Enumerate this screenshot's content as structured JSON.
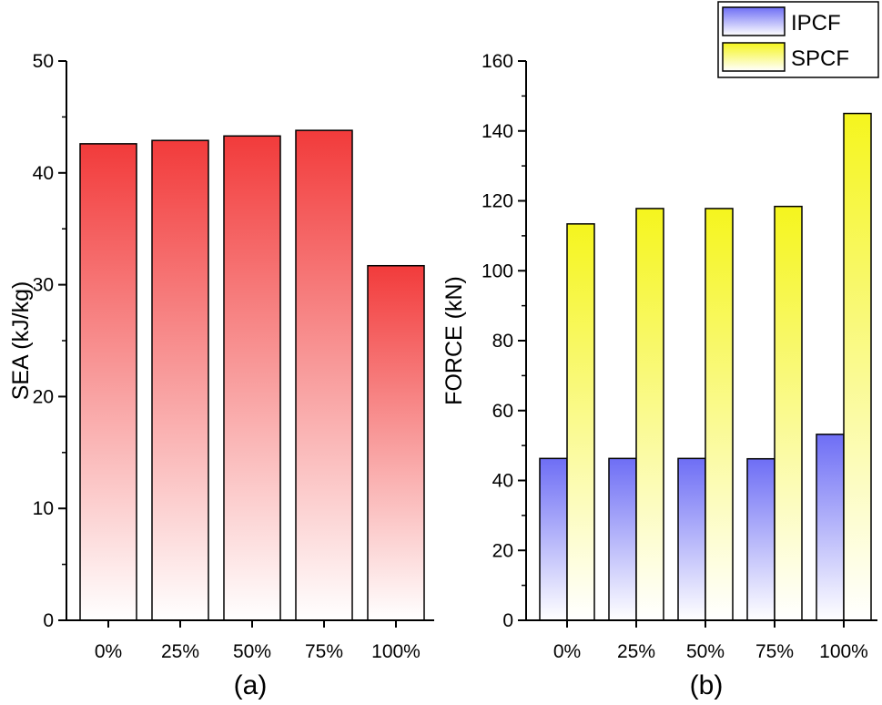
{
  "chart_data": [
    {
      "panel_label": "(a)",
      "type": "bar",
      "categories": [
        "0%",
        "25%",
        "50%",
        "75%",
        "100%"
      ],
      "series": [
        {
          "name": "SEA",
          "values": [
            42.6,
            42.9,
            43.3,
            43.8,
            31.7
          ],
          "color": "#f23b3b"
        }
      ],
      "xlabel": "",
      "ylabel": "SEA (kJ/kg)",
      "ylim": [
        0,
        50
      ],
      "yticks": [
        0,
        10,
        20,
        30,
        40,
        50
      ],
      "grid": false
    },
    {
      "panel_label": "(b)",
      "type": "bar",
      "categories": [
        "0%",
        "25%",
        "50%",
        "75%",
        "100%"
      ],
      "series": [
        {
          "name": "IPCF",
          "values": [
            46.3,
            46.3,
            46.3,
            46.2,
            53.2
          ],
          "color": "#6e6ef5"
        },
        {
          "name": "SPCF",
          "values": [
            113.4,
            117.8,
            117.8,
            118.4,
            145.0
          ],
          "color": "#f5f51e"
        }
      ],
      "xlabel": "",
      "ylabel": "FORCE (kN)",
      "ylim": [
        0,
        160
      ],
      "yticks": [
        0,
        20,
        40,
        60,
        80,
        100,
        120,
        140,
        160
      ],
      "grid": false,
      "legend_position": "top-right"
    }
  ]
}
